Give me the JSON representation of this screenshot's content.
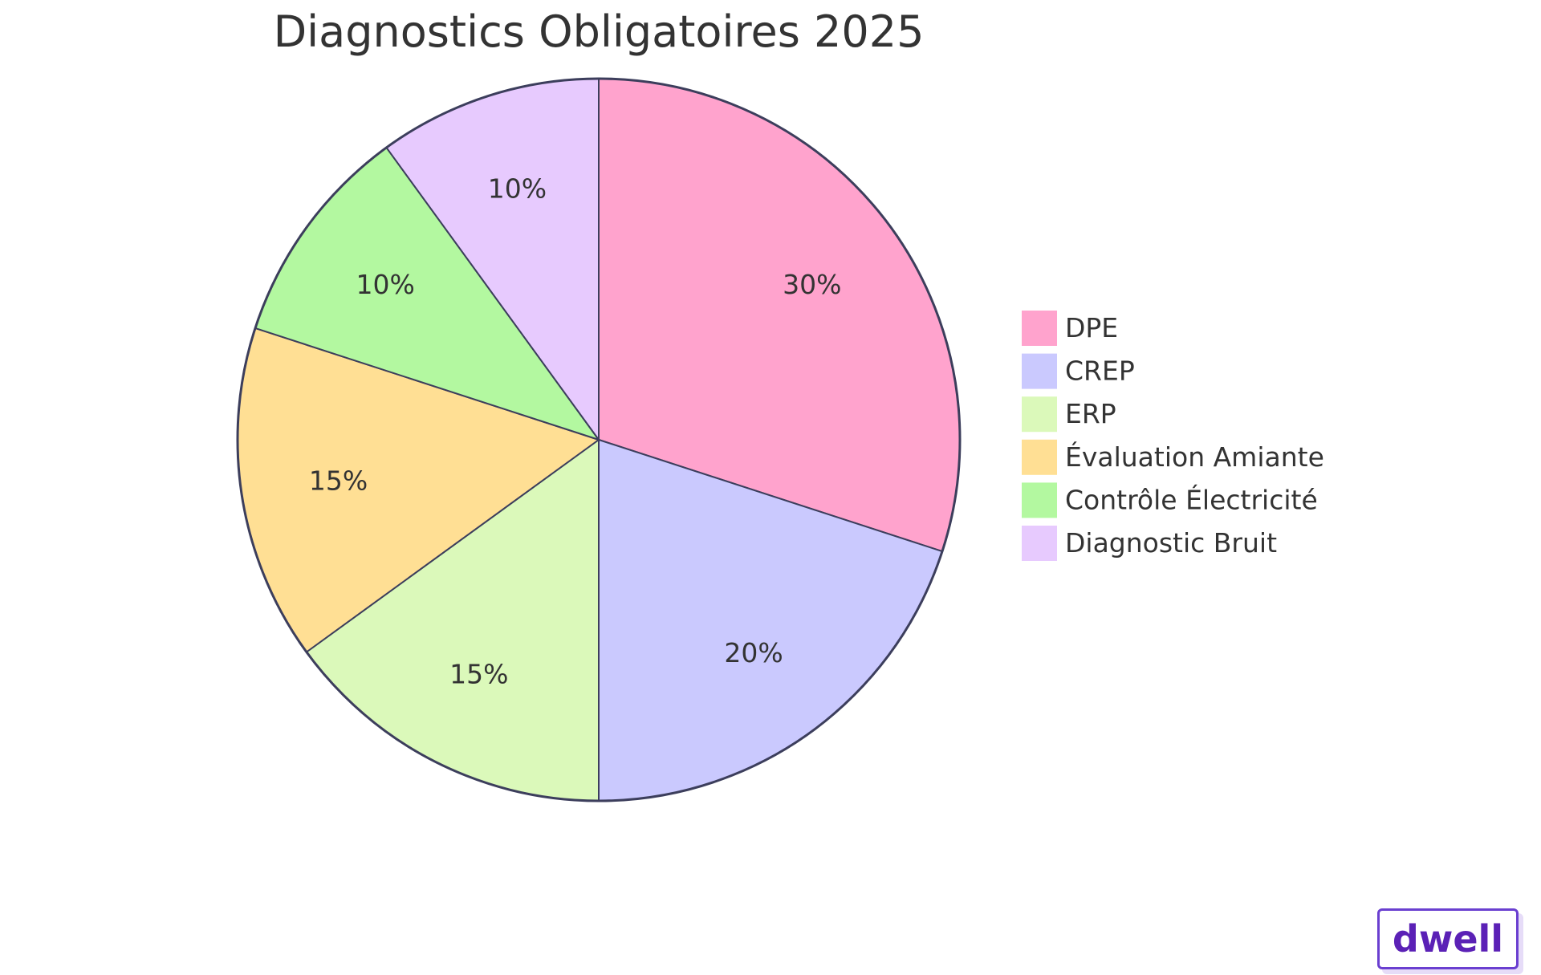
{
  "chart_data": {
    "type": "pie",
    "title": "Diagnostics Obligatoires 2025",
    "slices": [
      {
        "label": "DPE",
        "value": 30,
        "display": "30%",
        "color": "#ffa3cd"
      },
      {
        "label": "CREP",
        "value": 20,
        "display": "20%",
        "color": "#cac9fe"
      },
      {
        "label": "ERP",
        "value": 15,
        "display": "15%",
        "color": "#dbf9ba"
      },
      {
        "label": "Évaluation Amiante",
        "value": 15,
        "display": "15%",
        "color": "#ffdf94"
      },
      {
        "label": "Contrôle Électricité",
        "value": 10,
        "display": "10%",
        "color": "#b3f8a0"
      },
      {
        "label": "Diagnostic Bruit",
        "value": 10,
        "display": "10%",
        "color": "#e7cafe"
      }
    ],
    "start_angle": "12 o'clock",
    "direction": "clockwise",
    "legend_position": "right",
    "stroke_color": "#3c3e5c"
  },
  "brand": {
    "name": "dwell",
    "color": "#5b21b6",
    "border_color": "#6a3fd0"
  }
}
